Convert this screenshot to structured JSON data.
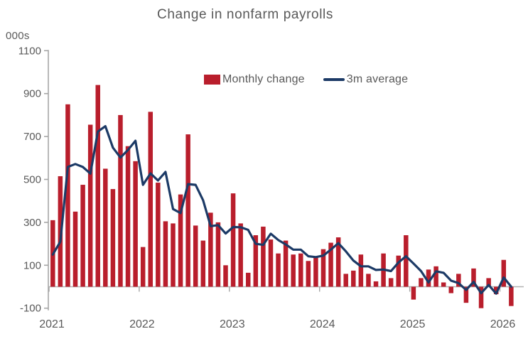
{
  "title": "Change in nonfarm payrolls",
  "y_axis_unit": "000s",
  "colors": {
    "bar": "#b91e2c",
    "line": "#1c3a66",
    "axis": "#a6a6a6",
    "zero_line": "#b3b3b3",
    "text": "#595959"
  },
  "legend": {
    "items": [
      {
        "label": "Monthly change",
        "type": "bar",
        "color": "#b91e2c"
      },
      {
        "label": "3m average",
        "type": "line",
        "color": "#1c3a66"
      }
    ]
  },
  "chart_data": {
    "type": "bar",
    "title": "Change in nonfarm payrolls",
    "unit_label": "000s",
    "ylabel": "Change in nonfarm payrolls, thousands",
    "ylim": [
      -100,
      1100
    ],
    "y_ticks": [
      -100,
      100,
      300,
      500,
      700,
      900,
      1100
    ],
    "x_tick_labels": [
      "2021",
      "2022",
      "2023",
      "2024",
      "2025",
      "2026"
    ],
    "grid": false,
    "legend_position": "top",
    "categories": [
      "2021-01",
      "2021-02",
      "2021-03",
      "2021-04",
      "2021-05",
      "2021-06",
      "2021-07",
      "2021-08",
      "2021-09",
      "2021-10",
      "2021-11",
      "2021-12",
      "2022-01",
      "2022-02",
      "2022-03",
      "2022-04",
      "2022-05",
      "2022-06",
      "2022-07",
      "2022-08",
      "2022-09",
      "2022-10",
      "2022-11",
      "2022-12",
      "2023-01",
      "2023-02",
      "2023-03",
      "2023-04",
      "2023-05",
      "2023-06",
      "2023-07",
      "2023-08",
      "2023-09",
      "2023-10",
      "2023-11",
      "2023-12",
      "2024-01",
      "2024-02",
      "2024-03",
      "2024-04",
      "2024-05",
      "2024-06",
      "2024-07",
      "2024-08",
      "2024-09",
      "2024-10",
      "2024-11",
      "2024-12",
      "2025-01",
      "2025-02",
      "2025-03",
      "2025-04",
      "2025-05",
      "2025-06",
      "2025-07",
      "2025-08",
      "2025-09",
      "2025-10",
      "2025-11",
      "2025-12",
      "2026-01",
      "2026-02"
    ],
    "series": [
      {
        "name": "Monthly change",
        "type": "bar",
        "color": "#b91e2c",
        "values": [
          310,
          515,
          850,
          350,
          475,
          755,
          940,
          550,
          455,
          800,
          655,
          585,
          185,
          815,
          485,
          305,
          295,
          430,
          710,
          285,
          215,
          345,
          300,
          100,
          435,
          295,
          65,
          240,
          280,
          220,
          155,
          215,
          150,
          155,
          120,
          140,
          175,
          205,
          230,
          60,
          75,
          150,
          60,
          25,
          155,
          40,
          145,
          240,
          -60,
          40,
          80,
          95,
          20,
          -30,
          60,
          -75,
          85,
          -100,
          40,
          -35,
          125,
          -90
        ]
      },
      {
        "name": "3m average",
        "type": "line",
        "color": "#1c3a66",
        "values": [
          150,
          210,
          558,
          572,
          558,
          527,
          723,
          748,
          648,
          602,
          637,
          680,
          475,
          528,
          495,
          535,
          362,
          343,
          478,
          475,
          403,
          282,
          287,
          248,
          278,
          277,
          265,
          200,
          195,
          247,
          218,
          197,
          173,
          173,
          142,
          138,
          145,
          173,
          203,
          165,
          122,
          95,
          95,
          78,
          80,
          73,
          113,
          142,
          108,
          73,
          20,
          72,
          65,
          28,
          17,
          -15,
          23,
          -30,
          8,
          -32,
          43,
          0
        ]
      }
    ]
  }
}
